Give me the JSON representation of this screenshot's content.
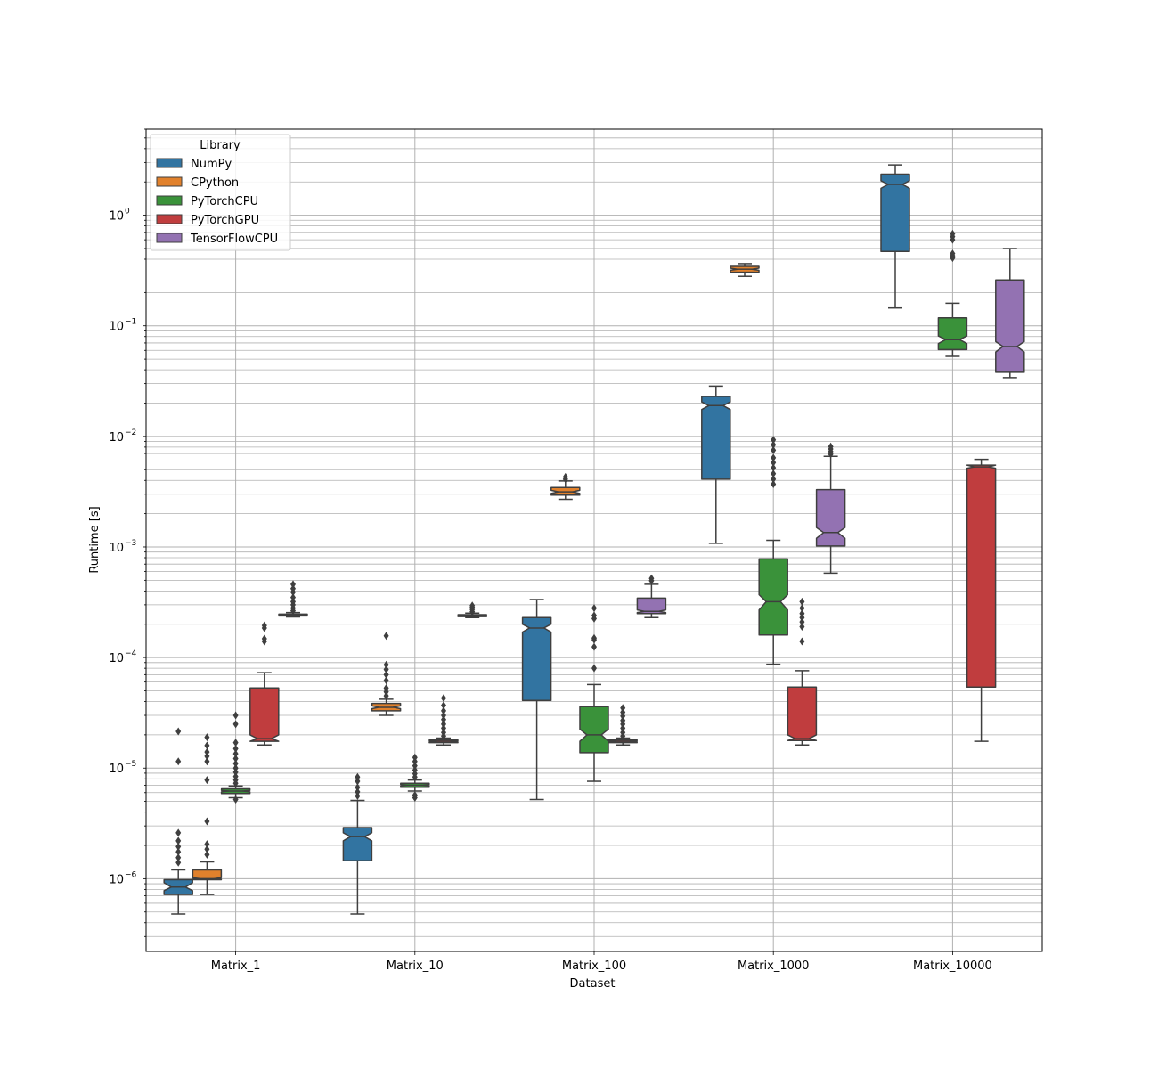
{
  "chart_data": {
    "type": "box",
    "xlabel": "Dataset",
    "ylabel": "Runtime [s]",
    "yscale": "log",
    "ylim": [
      2.2e-07,
      6.0
    ],
    "grid": "on (major and minor)",
    "legend": {
      "title": "Library",
      "placement": "top-left"
    },
    "categories": [
      "Matrix_1",
      "Matrix_10",
      "Matrix_100",
      "Matrix_1000",
      "Matrix_10000"
    ],
    "y_tick_labels": [
      "10",
      "10",
      "10",
      "10",
      "10",
      "10",
      "10"
    ],
    "y_tick_exponents": [
      "−6",
      "−5",
      "−4",
      "−3",
      "−2",
      "−1",
      "0"
    ],
    "y_tick_values": [
      1e-06,
      1e-05,
      0.0001,
      0.001,
      0.01,
      0.1,
      1
    ],
    "series": [
      {
        "name": "NumPy",
        "color": "#3274a1",
        "boxes": [
          {
            "category": "Matrix_1",
            "whislo": 4.8e-07,
            "q1": 7.2e-07,
            "med": 8.4e-07,
            "q3": 9.8e-07,
            "whishi": 1.2e-06,
            "notch": [
              7.8e-07,
              9.2e-07
            ],
            "fliers": [
              1.4e-06,
              1.55e-06,
              1.75e-06,
              1.95e-06,
              2.2e-06,
              2.6e-06,
              1.15e-05,
              2.15e-05
            ]
          },
          {
            "category": "Matrix_10",
            "whislo": 4.8e-07,
            "q1": 1.45e-06,
            "med": 2.4e-06,
            "q3": 2.9e-06,
            "whishi": 5.1e-06,
            "notch": [
              2.2e-06,
              2.6e-06
            ],
            "fliers": [
              5.6e-06,
              6.1e-06,
              6.7e-06,
              7.6e-06,
              8.3e-06
            ]
          },
          {
            "category": "Matrix_100",
            "whislo": 5.2e-06,
            "q1": 4.1e-05,
            "med": 0.000185,
            "q3": 0.00023,
            "whishi": 0.000335,
            "notch": [
              0.00017,
              0.0002
            ],
            "fliers": []
          },
          {
            "category": "Matrix_1000",
            "whislo": 0.00108,
            "q1": 0.0041,
            "med": 0.019,
            "q3": 0.023,
            "whishi": 0.0285,
            "notch": [
              0.0175,
              0.0205
            ],
            "fliers": []
          },
          {
            "category": "Matrix_10000",
            "whislo": 0.145,
            "q1": 0.47,
            "med": 1.9,
            "q3": 2.35,
            "whishi": 2.85,
            "notch": [
              1.75,
              2.05
            ],
            "fliers": []
          }
        ]
      },
      {
        "name": "CPython",
        "color": "#e1812c",
        "boxes": [
          {
            "category": "Matrix_1",
            "whislo": 7.2e-07,
            "q1": 9.8e-07,
            "med": 1e-06,
            "q3": 1.2e-06,
            "whishi": 1.42e-06,
            "notch": [
              9.9e-07,
              1.02e-06
            ],
            "fliers": [
              1.65e-06,
              1.85e-06,
              2.05e-06,
              3.3e-06,
              7.8e-06,
              1.15e-05,
              1.28e-05,
              1.4e-05,
              1.6e-05,
              1.9e-05
            ]
          },
          {
            "category": "Matrix_10",
            "whislo": 3e-05,
            "q1": 3.3e-05,
            "med": 3.55e-05,
            "q3": 3.85e-05,
            "whishi": 4.2e-05,
            "notch": [
              3.45e-05,
              3.65e-05
            ],
            "fliers": [
              4.5e-05,
              4.9e-05,
              5.3e-05,
              6.2e-05,
              7e-05,
              7.8e-05,
              8.6e-05,
              0.000157
            ]
          },
          {
            "category": "Matrix_100",
            "whislo": 0.0027,
            "q1": 0.00295,
            "med": 0.00315,
            "q3": 0.00345,
            "whishi": 0.00395,
            "notch": [
              0.00305,
              0.00325
            ],
            "fliers": [
              0.0041,
              0.0043
            ]
          },
          {
            "category": "Matrix_1000",
            "whislo": 0.28,
            "q1": 0.305,
            "med": 0.325,
            "q3": 0.345,
            "whishi": 0.365,
            "notch": [
              0.318,
              0.332
            ],
            "fliers": []
          }
        ]
      },
      {
        "name": "PyTorchCPU",
        "color": "#3a923a",
        "boxes": [
          {
            "category": "Matrix_1",
            "whislo": 5.4e-06,
            "q1": 5.9e-06,
            "med": 6.2e-06,
            "q3": 6.5e-06,
            "whishi": 6.9e-06,
            "notch": [
              6.1e-06,
              6.3e-06
            ],
            "fliers": [
              5.2e-06,
              7.3e-06,
              7.8e-06,
              8.4e-06,
              9.2e-06,
              1e-05,
              1.1e-05,
              1.22e-05,
              1.35e-05,
              1.5e-05,
              1.7e-05,
              2.5e-05,
              3e-05
            ]
          },
          {
            "category": "Matrix_10",
            "whislo": 6.2e-06,
            "q1": 6.7e-06,
            "med": 7e-06,
            "q3": 7.3e-06,
            "whishi": 7.8e-06,
            "notch": [
              6.9e-06,
              7.1e-06
            ],
            "fliers": [
              5.4e-06,
              5.7e-06,
              8.3e-06,
              8.9e-06,
              9.6e-06,
              1.05e-05,
              1.15e-05,
              1.25e-05
            ]
          },
          {
            "category": "Matrix_100",
            "whislo": 7.6e-06,
            "q1": 1.38e-05,
            "med": 2e-05,
            "q3": 3.6e-05,
            "whishi": 5.7e-05,
            "notch": [
              1.75e-05,
              2.25e-05
            ],
            "fliers": [
              8e-05,
              0.000125,
              0.000145,
              0.00015,
              0.000225,
              0.00024,
              0.00028
            ]
          },
          {
            "category": "Matrix_1000",
            "whislo": 8.7e-05,
            "q1": 0.00016,
            "med": 0.00032,
            "q3": 0.00078,
            "whishi": 0.00115,
            "notch": [
              0.00027,
              0.00037
            ],
            "fliers": [
              0.0037,
              0.0041,
              0.0046,
              0.0052,
              0.0058,
              0.0064,
              0.0075,
              0.0084,
              0.0093
            ]
          },
          {
            "category": "Matrix_10000",
            "whislo": 0.053,
            "q1": 0.061,
            "med": 0.075,
            "q3": 0.118,
            "whishi": 0.16,
            "notch": [
              0.069,
              0.081
            ],
            "fliers": [
              0.41,
              0.43,
              0.45,
              0.6,
              0.64,
              0.68
            ]
          }
        ]
      },
      {
        "name": "PyTorchGPU",
        "color": "#c03d3e",
        "boxes": [
          {
            "category": "Matrix_1",
            "whislo": 1.62e-05,
            "q1": 1.75e-05,
            "med": 1.85e-05,
            "q3": 5.3e-05,
            "whishi": 7.3e-05,
            "notch": [
              1.7e-05,
              2e-05
            ],
            "fliers": [
              0.00014,
              0.000148,
              0.000185,
              0.000195
            ]
          },
          {
            "category": "Matrix_10",
            "whislo": 1.62e-05,
            "q1": 1.7e-05,
            "med": 1.75e-05,
            "q3": 1.8e-05,
            "whishi": 1.87e-05,
            "notch": [
              1.73e-05,
              1.77e-05
            ],
            "fliers": [
              1.95e-05,
              2.1e-05,
              2.3e-05,
              2.5e-05,
              2.75e-05,
              3e-05,
              3.3e-05,
              3.7e-05,
              4.3e-05
            ]
          },
          {
            "category": "Matrix_100",
            "whislo": 1.62e-05,
            "q1": 1.7e-05,
            "med": 1.75e-05,
            "q3": 1.8e-05,
            "whishi": 1.87e-05,
            "notch": [
              1.73e-05,
              1.77e-05
            ],
            "fliers": [
              1.95e-05,
              2.1e-05,
              2.3e-05,
              2.5e-05,
              2.7e-05,
              2.95e-05,
              3.2e-05,
              3.5e-05
            ]
          },
          {
            "category": "Matrix_1000",
            "whislo": 1.62e-05,
            "q1": 1.78e-05,
            "med": 1.85e-05,
            "q3": 5.4e-05,
            "whishi": 7.6e-05,
            "notch": [
              1.72e-05,
              2e-05
            ],
            "fliers": [
              0.00014,
              0.00019,
              0.00021,
              0.00023,
              0.00025,
              0.00028,
              0.00032
            ]
          },
          {
            "category": "Matrix_10000",
            "whislo": 1.75e-05,
            "q1": 5.4e-05,
            "med": 0.0053,
            "q3": 0.0055,
            "whishi": 0.0062,
            "notch": [
              0.00515,
              0.0055
            ],
            "fliers": []
          }
        ]
      },
      {
        "name": "TensorFlowCPU",
        "color": "#9372b2",
        "boxes": [
          {
            "category": "Matrix_1",
            "whislo": 0.000233,
            "q1": 0.000238,
            "med": 0.000242,
            "q3": 0.000247,
            "whishi": 0.000255,
            "notch": [
              0.00024,
              0.000244
            ],
            "fliers": [
              0.000265,
              0.00028,
              0.0003,
              0.00032,
              0.00035,
              0.00039,
              0.00042,
              0.00046
            ]
          },
          {
            "category": "Matrix_10",
            "whislo": 0.00023,
            "q1": 0.000235,
            "med": 0.00024,
            "q3": 0.000244,
            "whishi": 0.000252,
            "notch": [
              0.000238,
              0.000242
            ],
            "fliers": [
              0.00026,
              0.000272,
              0.000285,
              0.000295
            ]
          },
          {
            "category": "Matrix_100",
            "whislo": 0.00023,
            "q1": 0.00025,
            "med": 0.000262,
            "q3": 0.000345,
            "whishi": 0.00046,
            "notch": [
              0.000255,
              0.00027
            ],
            "fliers": [
              0.000495,
              0.00052
            ]
          },
          {
            "category": "Matrix_1000",
            "whislo": 0.00058,
            "q1": 0.00102,
            "med": 0.00135,
            "q3": 0.0033,
            "whishi": 0.0066,
            "notch": [
              0.0012,
              0.0015
            ],
            "fliers": [
              0.0069,
              0.0073,
              0.0077,
              0.0081
            ]
          },
          {
            "category": "Matrix_10000",
            "whislo": 0.034,
            "q1": 0.038,
            "med": 0.065,
            "q3": 0.26,
            "whishi": 0.5,
            "notch": [
              0.058,
              0.072
            ],
            "fliers": []
          }
        ]
      }
    ]
  }
}
